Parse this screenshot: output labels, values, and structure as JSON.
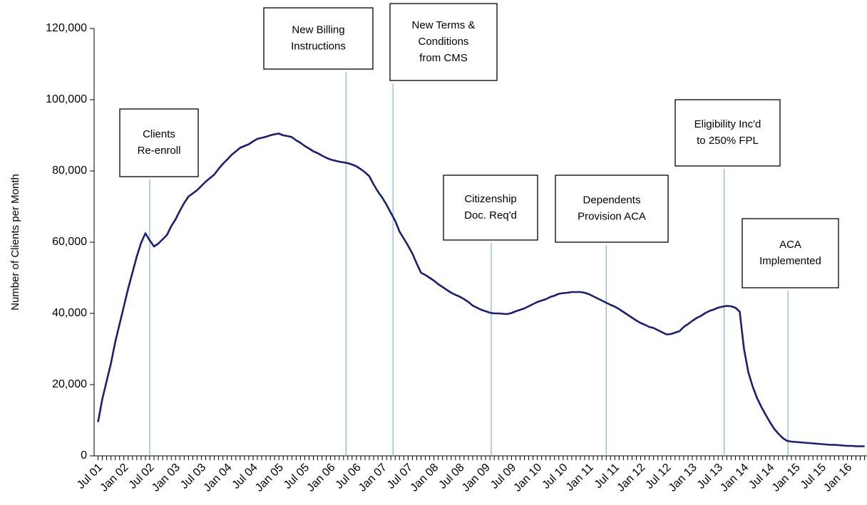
{
  "chart_data": {
    "type": "line",
    "y_label": "Number of Clients per Month",
    "categories": [
      "Jul 01",
      null,
      null,
      null,
      null,
      null,
      "Jan 02",
      null,
      null,
      null,
      null,
      null,
      "Jul 02",
      null,
      null,
      null,
      null,
      null,
      "Jan 03",
      null,
      null,
      null,
      null,
      null,
      "Jul 03",
      null,
      null,
      null,
      null,
      null,
      "Jan 04",
      null,
      null,
      null,
      null,
      null,
      "Jul 04",
      null,
      null,
      null,
      null,
      null,
      "Jan 05",
      null,
      null,
      null,
      null,
      null,
      "Jul 05",
      null,
      null,
      null,
      null,
      null,
      "Jan 06",
      null,
      null,
      null,
      null,
      null,
      "Jul 06",
      null,
      null,
      null,
      null,
      null,
      "Jan 07",
      null,
      null,
      null,
      null,
      null,
      "Jul 07",
      null,
      null,
      null,
      null,
      null,
      "Jan 08",
      null,
      null,
      null,
      null,
      null,
      "Jul 08",
      null,
      null,
      null,
      null,
      null,
      "Jan 09",
      null,
      null,
      null,
      null,
      null,
      "Jul 09",
      null,
      null,
      null,
      null,
      null,
      "Jan 10",
      null,
      null,
      null,
      null,
      null,
      "Jul 10",
      null,
      null,
      null,
      null,
      null,
      "Jan 11",
      null,
      null,
      null,
      null,
      null,
      "Jul 11",
      null,
      null,
      null,
      null,
      null,
      "Jan 12",
      null,
      null,
      null,
      null,
      null,
      "Jul 12",
      null,
      null,
      null,
      null,
      null,
      "Jan 13",
      null,
      null,
      null,
      null,
      null,
      "Jul 13",
      null,
      null,
      null,
      null,
      null,
      "Jan 14",
      null,
      null,
      null,
      null,
      null,
      "Jul 14",
      null,
      null,
      null,
      null,
      null,
      "Jan 15",
      null,
      null,
      null,
      null,
      null,
      "Jul 15",
      null,
      null,
      null,
      null,
      null,
      "Jan 16",
      null,
      null,
      null,
      null
    ],
    "series": [
      {
        "name": "Clients",
        "color": "#1a1f6e",
        "values": [
          9500,
          16000,
          21000,
          26000,
          32000,
          37000,
          42000,
          47000,
          51500,
          56000,
          59800,
          62500,
          60500,
          58800,
          59600,
          60800,
          62000,
          64500,
          66400,
          68800,
          71000,
          72800,
          73700,
          74600,
          75800,
          77000,
          78000,
          79000,
          80600,
          82000,
          83200,
          84500,
          85500,
          86500,
          87000,
          87500,
          88300,
          89000,
          89300,
          89600,
          90000,
          90300,
          90500,
          90000,
          89800,
          89500,
          88600,
          87900,
          87000,
          86300,
          85500,
          85000,
          84300,
          83700,
          83200,
          82900,
          82600,
          82400,
          82200,
          81800,
          81300,
          80500,
          79600,
          78500,
          76200,
          74200,
          72500,
          70500,
          68200,
          66000,
          63000,
          61000,
          59000,
          56800,
          54000,
          51400,
          50800,
          50000,
          49200,
          48200,
          47400,
          46600,
          45800,
          45200,
          44700,
          44000,
          43200,
          42200,
          41600,
          41000,
          40600,
          40200,
          40000,
          40000,
          39900,
          39800,
          40100,
          40600,
          41000,
          41400,
          42000,
          42600,
          43200,
          43600,
          44000,
          44600,
          45000,
          45500,
          45700,
          45800,
          46000,
          46000,
          46000,
          45800,
          45400,
          44800,
          44200,
          43600,
          43000,
          42400,
          41900,
          41200,
          40400,
          39600,
          38800,
          38000,
          37300,
          36800,
          36200,
          35900,
          35300,
          34700,
          34100,
          34200,
          34600,
          35000,
          36200,
          37000,
          37900,
          38700,
          39300,
          40100,
          40700,
          41100,
          41600,
          41900,
          42100,
          42000,
          41600,
          40500,
          30000,
          23500,
          19500,
          16300,
          13800,
          11600,
          9500,
          7600,
          6200,
          5000,
          4200,
          4000,
          3900,
          3800,
          3700,
          3600,
          3500,
          3400,
          3300,
          3200,
          3100,
          3100,
          3000,
          2900,
          2800,
          2800,
          2700,
          2700,
          2700
        ]
      }
    ],
    "ylim": [
      0,
      120000
    ],
    "yticks": [
      0,
      {
        "value": 20000,
        "label": "20,000"
      },
      {
        "value": 40000,
        "label": "40,000"
      },
      {
        "value": 60000,
        "label": "60,000"
      },
      {
        "value": 80000,
        "label": "80,000"
      },
      {
        "value": 100000,
        "label": "100,000"
      },
      {
        "value": 120000,
        "label": "120,000"
      }
    ],
    "annotations": [
      {
        "lines": [
          "Clients",
          "Re-enroll"
        ],
        "at": 12
      },
      {
        "lines": [
          "New Billing",
          "Instructions"
        ],
        "at": 57.6
      },
      {
        "lines": [
          "New Terms &",
          "Conditions",
          "from CMS"
        ],
        "at": 68.5
      },
      {
        "lines": [
          "Citizenship",
          "Doc. Req'd"
        ],
        "at": 91.3
      },
      {
        "lines": [
          "Dependents",
          "Provision ACA"
        ],
        "at": 118
      },
      {
        "lines": [
          "Eligibility Inc'd",
          "to 250% FPL"
        ],
        "at": 145.4
      },
      {
        "lines": [
          "ACA",
          "Implemented"
        ],
        "at": 160.2
      }
    ]
  }
}
